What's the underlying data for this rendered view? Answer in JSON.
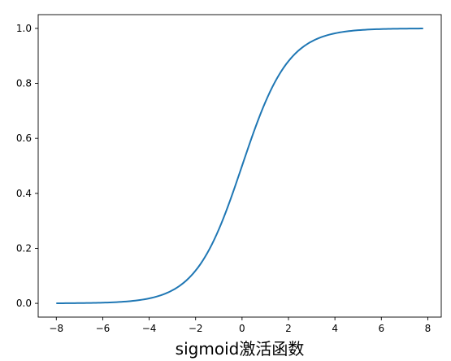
{
  "chart_data": {
    "type": "line",
    "title": "",
    "xlabel": "sigmoid激活函数",
    "ylabel": "",
    "xlim": [
      -8.78,
      8.58
    ],
    "ylim": [
      -0.05,
      1.05
    ],
    "grid": false,
    "x_ticks": [
      -8,
      -6,
      -4,
      -2,
      0,
      2,
      4,
      6,
      8
    ],
    "x_tick_labels": [
      "−8",
      "−6",
      "−4",
      "−2",
      "0",
      "2",
      "4",
      "6",
      "8"
    ],
    "y_ticks": [
      0.0,
      0.2,
      0.4,
      0.6,
      0.8,
      1.0
    ],
    "y_tick_labels": [
      "0.0",
      "0.2",
      "0.4",
      "0.6",
      "0.8",
      "1.0"
    ],
    "series": [
      {
        "function": "sigmoid",
        "x_start": -8,
        "x_end": 7.8,
        "x_step": 0.1,
        "sample_points": {
          "x": [
            -8,
            -6,
            -4,
            -2,
            -1,
            0,
            1,
            2,
            4,
            6,
            7.8
          ],
          "y": [
            0.0003,
            0.0025,
            0.018,
            0.119,
            0.269,
            0.5,
            0.731,
            0.881,
            0.982,
            0.9975,
            0.9996
          ]
        },
        "color": "#1f77b4"
      }
    ]
  }
}
